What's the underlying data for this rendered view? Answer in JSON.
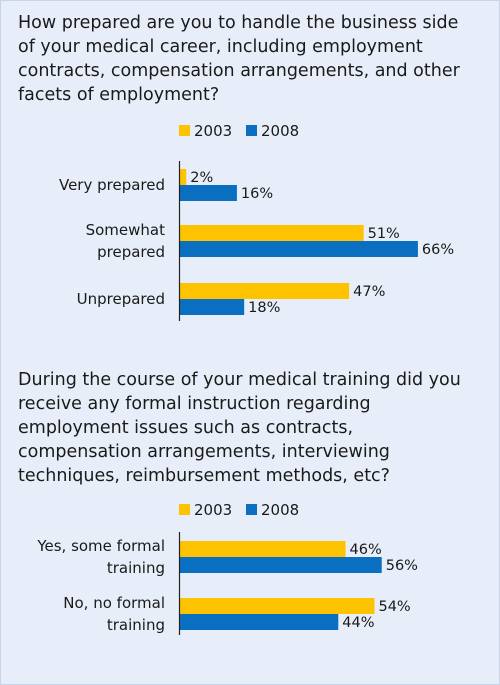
{
  "colors": {
    "y2003": "#fdc300",
    "y2008": "#0b6fc1",
    "axis": "#222222"
  },
  "charts": [
    {
      "question": "How prepared are you to handle the business side of your medical career, including employment contracts, compensation arrangements, and other facets of employment?",
      "legend": [
        "2003",
        "2008"
      ]
    },
    {
      "question": "During the course of your medical training did you receive any formal instruction regarding employment issues such as contracts, compensation arrangements, interviewing techniques, reimbursement methods, etc?",
      "legend": [
        "2003",
        "2008"
      ]
    }
  ],
  "chart_data": [
    {
      "type": "bar",
      "orientation": "horizontal",
      "title": "How prepared are you to handle the business side of your medical career, including employment contracts, compensation arrangements, and other facets of employment?",
      "categories": [
        [
          "Very prepared"
        ],
        [
          "Somewhat",
          "prepared"
        ],
        [
          "Unprepared"
        ]
      ],
      "series": [
        {
          "name": "2003",
          "values": [
            2,
            51,
            47
          ],
          "labels": [
            "2%",
            "51%",
            "47%"
          ]
        },
        {
          "name": "2008",
          "values": [
            16,
            66,
            18
          ],
          "labels": [
            "16%",
            "66%",
            "18%"
          ]
        }
      ],
      "xlim": [
        0,
        100
      ],
      "legend_position": "top",
      "grid": false
    },
    {
      "type": "bar",
      "orientation": "horizontal",
      "title": "During the course of your medical training did you receive any formal instruction regarding employment issues such as contracts, compensation arrangements, interviewing techniques, reimbursement methods, etc?",
      "categories": [
        [
          "Yes, some formal",
          "training"
        ],
        [
          "No, no formal",
          "training"
        ]
      ],
      "series": [
        {
          "name": "2003",
          "values": [
            46,
            54
          ],
          "labels": [
            "46%",
            "54%"
          ]
        },
        {
          "name": "2008",
          "values": [
            56,
            44
          ],
          "labels": [
            "56%",
            "44%"
          ]
        }
      ],
      "xlim": [
        0,
        100
      ],
      "legend_position": "top",
      "grid": false
    }
  ]
}
